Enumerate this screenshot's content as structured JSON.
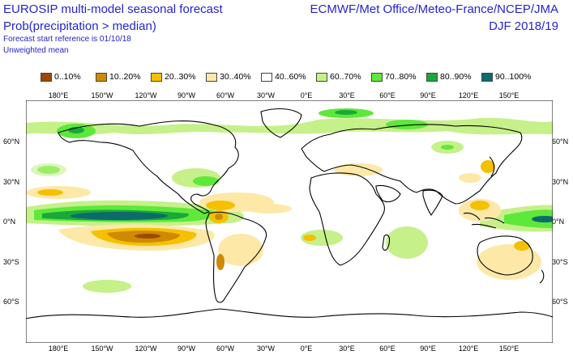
{
  "header": {
    "title_line1": "EUROSIP multi-model seasonal forecast",
    "title_line2": "Prob(precipitation > median)",
    "subtitle_line1": "Forecast start reference is 01/10/18",
    "subtitle_line2": "Unweighted mean",
    "right_line1": "ECMWF/Met Office/Meteo-France/NCEP/JMA",
    "right_line2": "DJF 2018/19"
  },
  "legend": [
    {
      "label": "0..10%",
      "color": "#9b4a00"
    },
    {
      "label": "10..20%",
      "color": "#cf8a00"
    },
    {
      "label": "20..30%",
      "color": "#f5c000"
    },
    {
      "label": "30..40%",
      "color": "#fde8a8"
    },
    {
      "label": "40..60%",
      "color": "#ffffff"
    },
    {
      "label": "60..70%",
      "color": "#c6f08a"
    },
    {
      "label": "70..80%",
      "color": "#5ee83a"
    },
    {
      "label": "80..90%",
      "color": "#1aa83a"
    },
    {
      "label": "90..100%",
      "color": "#0d6b6b"
    }
  ],
  "axes": {
    "top_labels": [
      "180°E",
      "150°W",
      "120°W",
      "90°W",
      "60°W",
      "30°W",
      "0°E",
      "30°E",
      "60°E",
      "90°E",
      "120°E",
      "150°E"
    ],
    "bottom_labels": [
      "180°E",
      "150°W",
      "120°W",
      "90°W",
      "60°W",
      "30°W",
      "0°E",
      "30°E",
      "60°E",
      "90°E",
      "120°E",
      "150°E"
    ],
    "left_labels": [
      "60°N",
      "30°N",
      "0°N",
      "30°S",
      "60°S"
    ],
    "right_labels": [
      "60°N",
      "30°N",
      "0°N",
      "30°S",
      "60°S"
    ]
  }
}
